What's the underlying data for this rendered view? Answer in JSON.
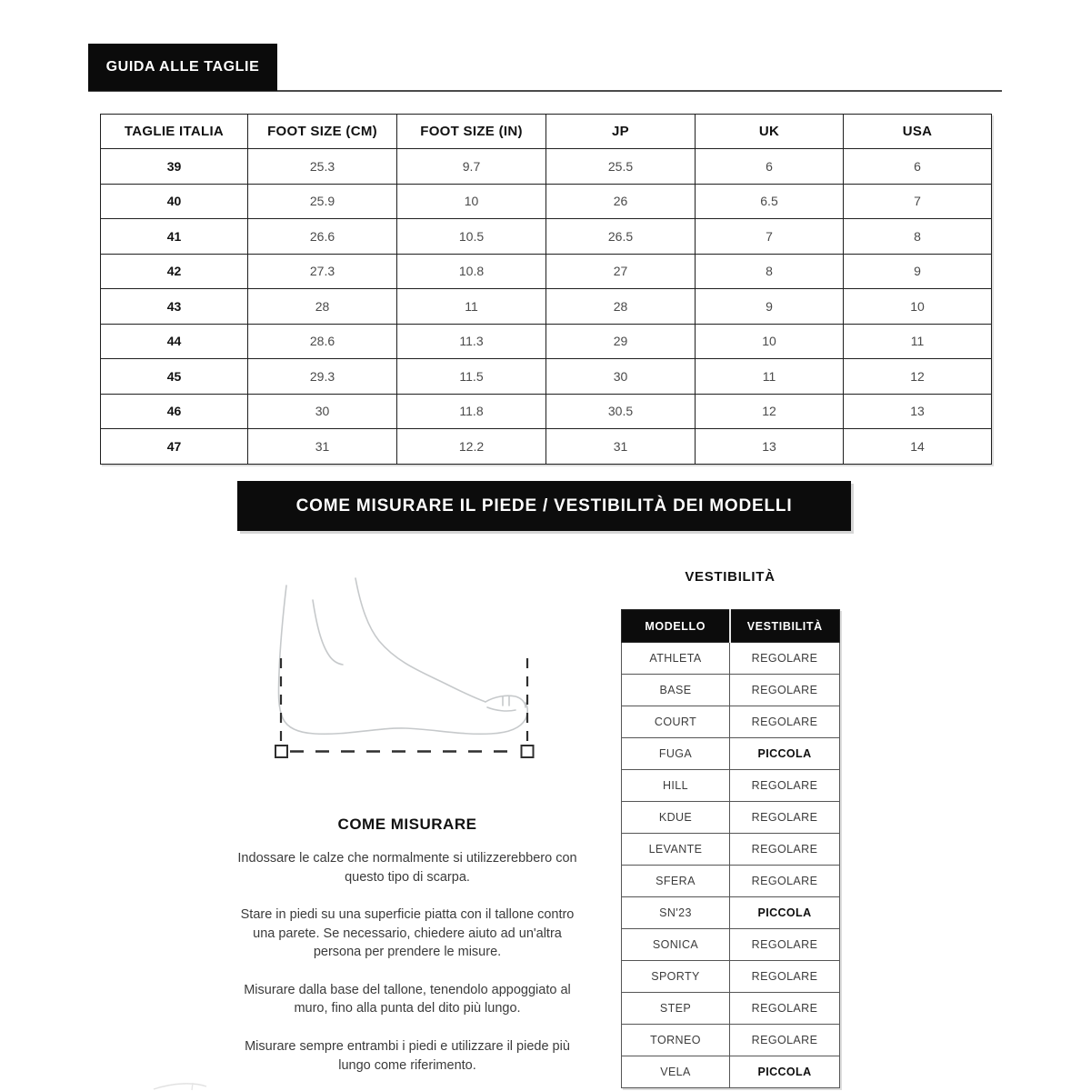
{
  "badge": {
    "label": "GUIDA ALLE TAGLIE"
  },
  "size_table": {
    "headers": [
      "TAGLIE ITALIA",
      "FOOT SIZE (CM)",
      "FOOT SIZE (IN)",
      "JP",
      "UK",
      "USA"
    ],
    "rows": [
      [
        "39",
        "25.3",
        "9.7",
        "25.5",
        "6",
        "6"
      ],
      [
        "40",
        "25.9",
        "10",
        "26",
        "6.5",
        "7"
      ],
      [
        "41",
        "26.6",
        "10.5",
        "26.5",
        "7",
        "8"
      ],
      [
        "42",
        "27.3",
        "10.8",
        "27",
        "8",
        "9"
      ],
      [
        "43",
        "28",
        "11",
        "28",
        "9",
        "10"
      ],
      [
        "44",
        "28.6",
        "11.3",
        "29",
        "10",
        "11"
      ],
      [
        "45",
        "29.3",
        "11.5",
        "30",
        "11",
        "12"
      ],
      [
        "46",
        "30",
        "11.8",
        "30.5",
        "12",
        "13"
      ],
      [
        "47",
        "31",
        "12.2",
        "31",
        "13",
        "14"
      ]
    ]
  },
  "banner": {
    "label": "COME MISURARE IL PIEDE / VESTIBILITÀ DEI MODELLI"
  },
  "illustration": {
    "name": "foot-measurement-diagram"
  },
  "measure": {
    "heading": "COME MISURARE",
    "paragraphs": [
      "Indossare le calze che normalmente si utilizzerebbero con questo tipo di scarpa.",
      "Stare in piedi su una superficie piatta con il tallone contro una parete. Se necessario, chiedere aiuto ad un'altra persona per prendere le misure.",
      "Misurare dalla base del tallone, tenendolo appoggiato al muro, fino alla punta del dito più lungo.",
      "Misurare sempre entrambi i piedi e utilizzare il piede più lungo come riferimento."
    ]
  },
  "fit": {
    "heading": "VESTIBILITÀ",
    "col_headers": [
      "MODELLO",
      "VESTIBILITÀ"
    ],
    "rows": [
      {
        "model": "ATHLETA",
        "fit": "REGOLARE",
        "bold": false
      },
      {
        "model": "BASE",
        "fit": "REGOLARE",
        "bold": false
      },
      {
        "model": "COURT",
        "fit": "REGOLARE",
        "bold": false
      },
      {
        "model": "FUGA",
        "fit": "PICCOLA",
        "bold": true
      },
      {
        "model": "HILL",
        "fit": "REGOLARE",
        "bold": false
      },
      {
        "model": "KDUE",
        "fit": "REGOLARE",
        "bold": false
      },
      {
        "model": "LEVANTE",
        "fit": "REGOLARE",
        "bold": false
      },
      {
        "model": "SFERA",
        "fit": "REGOLARE",
        "bold": false
      },
      {
        "model": "SN'23",
        "fit": "PICCOLA",
        "bold": true
      },
      {
        "model": "SONICA",
        "fit": "REGOLARE",
        "bold": false
      },
      {
        "model": "SPORTY",
        "fit": "REGOLARE",
        "bold": false
      },
      {
        "model": "STEP",
        "fit": "REGOLARE",
        "bold": false
      },
      {
        "model": "TORNEO",
        "fit": "REGOLARE",
        "bold": false
      },
      {
        "model": "VELA",
        "fit": "PICCOLA",
        "bold": true
      }
    ]
  },
  "colors": {
    "panel_black": "#0c0c0c",
    "table_border": "#1f1f1f",
    "fit_border": "#555555",
    "body_text": "#3b3b3b",
    "illustration_stroke": "#c6c9cb"
  }
}
